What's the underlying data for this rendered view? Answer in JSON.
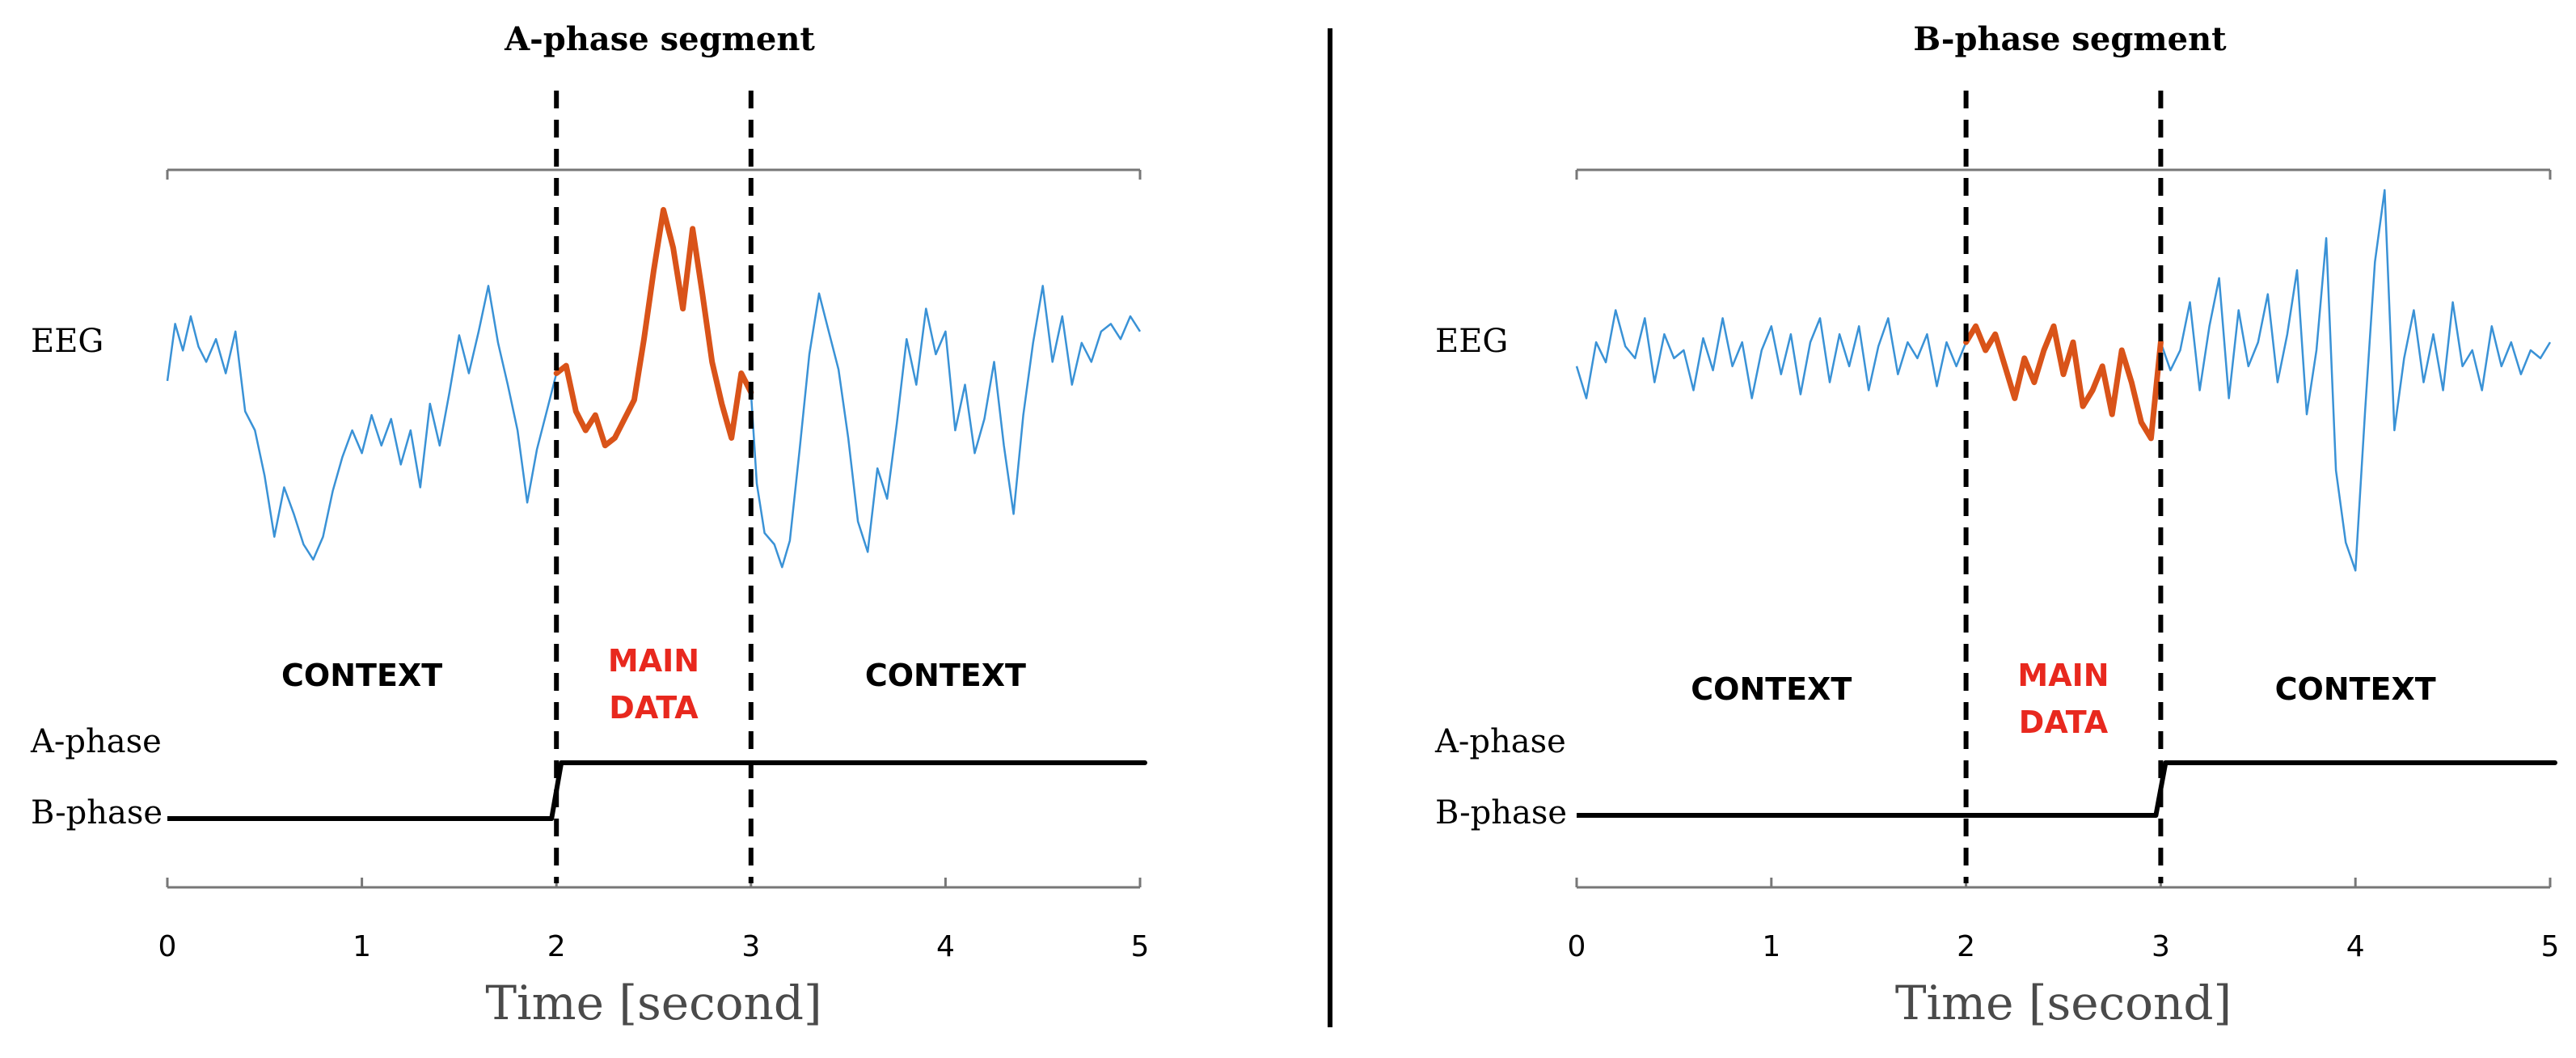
{
  "chart_data": [
    {
      "type": "line",
      "title": "A-phase segment",
      "xlabel": "Time [second]",
      "xlim": [
        0,
        5
      ],
      "x_ticks": [
        "0",
        "1",
        "2",
        "3",
        "4",
        "5"
      ],
      "signal_labels": {
        "eeg": "EEG",
        "a_phase": "A-phase",
        "b_phase": "B-phase"
      },
      "segment": [
        2,
        3
      ],
      "region_labels": {
        "left": "CONTEXT",
        "middle_line1": "MAIN",
        "middle_line2": "DATA",
        "right": "CONTEXT"
      },
      "phase_steps": [
        [
          0,
          "B"
        ],
        [
          2,
          "A"
        ],
        [
          5,
          "A"
        ]
      ],
      "colors": {
        "eeg": "#3a92d6",
        "main": "#d95319",
        "main_label": "#e8281e"
      },
      "eeg": [
        [
          0.0,
          0.53
        ],
        [
          0.04,
          0.68
        ],
        [
          0.08,
          0.61
        ],
        [
          0.12,
          0.7
        ],
        [
          0.16,
          0.62
        ],
        [
          0.2,
          0.58
        ],
        [
          0.25,
          0.64
        ],
        [
          0.3,
          0.55
        ],
        [
          0.35,
          0.66
        ],
        [
          0.4,
          0.45
        ],
        [
          0.45,
          0.4
        ],
        [
          0.5,
          0.28
        ],
        [
          0.55,
          0.12
        ],
        [
          0.6,
          0.25
        ],
        [
          0.65,
          0.18
        ],
        [
          0.7,
          0.1
        ],
        [
          0.75,
          0.06
        ],
        [
          0.8,
          0.12
        ],
        [
          0.85,
          0.24
        ],
        [
          0.9,
          0.33
        ],
        [
          0.95,
          0.4
        ],
        [
          1.0,
          0.34
        ],
        [
          1.05,
          0.44
        ],
        [
          1.1,
          0.36
        ],
        [
          1.15,
          0.43
        ],
        [
          1.2,
          0.31
        ],
        [
          1.25,
          0.4
        ],
        [
          1.3,
          0.25
        ],
        [
          1.35,
          0.47
        ],
        [
          1.4,
          0.36
        ],
        [
          1.45,
          0.5
        ],
        [
          1.5,
          0.65
        ],
        [
          1.55,
          0.55
        ],
        [
          1.6,
          0.66
        ],
        [
          1.65,
          0.78
        ],
        [
          1.7,
          0.63
        ],
        [
          1.75,
          0.52
        ],
        [
          1.8,
          0.4
        ],
        [
          1.85,
          0.21
        ],
        [
          1.9,
          0.35
        ],
        [
          1.95,
          0.45
        ],
        [
          2.0,
          0.55
        ]
      ],
      "eeg_after": [
        [
          3.0,
          0.5
        ],
        [
          3.03,
          0.26
        ],
        [
          3.07,
          0.13
        ],
        [
          3.12,
          0.1
        ],
        [
          3.16,
          0.04
        ],
        [
          3.2,
          0.11
        ],
        [
          3.25,
          0.35
        ],
        [
          3.3,
          0.6
        ],
        [
          3.35,
          0.76
        ],
        [
          3.4,
          0.66
        ],
        [
          3.45,
          0.56
        ],
        [
          3.5,
          0.38
        ],
        [
          3.55,
          0.16
        ],
        [
          3.6,
          0.08
        ],
        [
          3.65,
          0.3
        ],
        [
          3.7,
          0.22
        ],
        [
          3.75,
          0.42
        ],
        [
          3.8,
          0.64
        ],
        [
          3.85,
          0.52
        ],
        [
          3.9,
          0.72
        ],
        [
          3.95,
          0.6
        ],
        [
          4.0,
          0.66
        ],
        [
          4.05,
          0.4
        ],
        [
          4.1,
          0.52
        ],
        [
          4.15,
          0.34
        ],
        [
          4.2,
          0.43
        ],
        [
          4.25,
          0.58
        ],
        [
          4.3,
          0.36
        ],
        [
          4.35,
          0.18
        ],
        [
          4.4,
          0.44
        ],
        [
          4.45,
          0.63
        ],
        [
          4.5,
          0.78
        ],
        [
          4.55,
          0.58
        ],
        [
          4.6,
          0.7
        ],
        [
          4.65,
          0.52
        ],
        [
          4.7,
          0.63
        ],
        [
          4.75,
          0.58
        ],
        [
          4.8,
          0.66
        ],
        [
          4.85,
          0.68
        ],
        [
          4.9,
          0.64
        ],
        [
          4.95,
          0.7
        ],
        [
          5.0,
          0.66
        ]
      ],
      "main": [
        [
          2.0,
          0.55
        ],
        [
          2.05,
          0.57
        ],
        [
          2.1,
          0.45
        ],
        [
          2.15,
          0.4
        ],
        [
          2.2,
          0.44
        ],
        [
          2.25,
          0.36
        ],
        [
          2.3,
          0.38
        ],
        [
          2.35,
          0.43
        ],
        [
          2.4,
          0.48
        ],
        [
          2.45,
          0.64
        ],
        [
          2.5,
          0.82
        ],
        [
          2.55,
          0.98
        ],
        [
          2.6,
          0.88
        ],
        [
          2.65,
          0.72
        ],
        [
          2.7,
          0.93
        ],
        [
          2.75,
          0.76
        ],
        [
          2.8,
          0.58
        ],
        [
          2.85,
          0.47
        ],
        [
          2.9,
          0.38
        ],
        [
          2.95,
          0.55
        ],
        [
          3.0,
          0.5
        ]
      ]
    },
    {
      "type": "line",
      "title": "B-phase segment",
      "xlabel": "Time [second]",
      "xlim": [
        0,
        5
      ],
      "x_ticks": [
        "0",
        "1",
        "2",
        "3",
        "4",
        "5"
      ],
      "signal_labels": {
        "eeg": "EEG",
        "a_phase": "A-phase",
        "b_phase": "B-phase"
      },
      "segment": [
        2,
        3
      ],
      "region_labels": {
        "left": "CONTEXT",
        "middle_line1": "MAIN",
        "middle_line2": "DATA",
        "right": "CONTEXT"
      },
      "phase_steps": [
        [
          0,
          "B"
        ],
        [
          3,
          "A"
        ],
        [
          5,
          "A"
        ]
      ],
      "colors": {
        "eeg": "#3a92d6",
        "main": "#d95319",
        "main_label": "#e8281e"
      },
      "eeg": [
        [
          0.0,
          0.56
        ],
        [
          0.05,
          0.48
        ],
        [
          0.1,
          0.62
        ],
        [
          0.15,
          0.57
        ],
        [
          0.2,
          0.7
        ],
        [
          0.25,
          0.61
        ],
        [
          0.3,
          0.58
        ],
        [
          0.35,
          0.68
        ],
        [
          0.4,
          0.52
        ],
        [
          0.45,
          0.64
        ],
        [
          0.5,
          0.58
        ],
        [
          0.55,
          0.6
        ],
        [
          0.6,
          0.5
        ],
        [
          0.65,
          0.63
        ],
        [
          0.7,
          0.55
        ],
        [
          0.75,
          0.68
        ],
        [
          0.8,
          0.56
        ],
        [
          0.85,
          0.62
        ],
        [
          0.9,
          0.48
        ],
        [
          0.95,
          0.6
        ],
        [
          1.0,
          0.66
        ],
        [
          1.05,
          0.54
        ],
        [
          1.1,
          0.64
        ],
        [
          1.15,
          0.49
        ],
        [
          1.2,
          0.62
        ],
        [
          1.25,
          0.68
        ],
        [
          1.3,
          0.52
        ],
        [
          1.35,
          0.64
        ],
        [
          1.4,
          0.56
        ],
        [
          1.45,
          0.66
        ],
        [
          1.5,
          0.5
        ],
        [
          1.55,
          0.61
        ],
        [
          1.6,
          0.68
        ],
        [
          1.65,
          0.54
        ],
        [
          1.7,
          0.62
        ],
        [
          1.75,
          0.58
        ],
        [
          1.8,
          0.64
        ],
        [
          1.85,
          0.51
        ],
        [
          1.9,
          0.62
        ],
        [
          1.95,
          0.56
        ],
        [
          2.0,
          0.62
        ]
      ],
      "eeg_after": [
        [
          3.0,
          0.62
        ],
        [
          3.05,
          0.55
        ],
        [
          3.1,
          0.6
        ],
        [
          3.15,
          0.72
        ],
        [
          3.2,
          0.5
        ],
        [
          3.25,
          0.66
        ],
        [
          3.3,
          0.78
        ],
        [
          3.35,
          0.48
        ],
        [
          3.4,
          0.7
        ],
        [
          3.45,
          0.56
        ],
        [
          3.5,
          0.62
        ],
        [
          3.55,
          0.74
        ],
        [
          3.6,
          0.52
        ],
        [
          3.65,
          0.64
        ],
        [
          3.7,
          0.8
        ],
        [
          3.75,
          0.44
        ],
        [
          3.8,
          0.6
        ],
        [
          3.85,
          0.88
        ],
        [
          3.9,
          0.3
        ],
        [
          3.95,
          0.12
        ],
        [
          4.0,
          0.05
        ],
        [
          4.05,
          0.45
        ],
        [
          4.1,
          0.82
        ],
        [
          4.15,
          1.0
        ],
        [
          4.2,
          0.4
        ],
        [
          4.25,
          0.58
        ],
        [
          4.3,
          0.7
        ],
        [
          4.35,
          0.52
        ],
        [
          4.4,
          0.64
        ],
        [
          4.45,
          0.5
        ],
        [
          4.5,
          0.72
        ],
        [
          4.55,
          0.56
        ],
        [
          4.6,
          0.6
        ],
        [
          4.65,
          0.5
        ],
        [
          4.7,
          0.66
        ],
        [
          4.75,
          0.56
        ],
        [
          4.8,
          0.62
        ],
        [
          4.85,
          0.54
        ],
        [
          4.9,
          0.6
        ],
        [
          4.95,
          0.58
        ],
        [
          5.0,
          0.62
        ]
      ],
      "main": [
        [
          2.0,
          0.62
        ],
        [
          2.05,
          0.66
        ],
        [
          2.1,
          0.6
        ],
        [
          2.15,
          0.64
        ],
        [
          2.2,
          0.56
        ],
        [
          2.25,
          0.48
        ],
        [
          2.3,
          0.58
        ],
        [
          2.35,
          0.52
        ],
        [
          2.4,
          0.6
        ],
        [
          2.45,
          0.66
        ],
        [
          2.5,
          0.54
        ],
        [
          2.55,
          0.62
        ],
        [
          2.6,
          0.46
        ],
        [
          2.65,
          0.5
        ],
        [
          2.7,
          0.56
        ],
        [
          2.75,
          0.44
        ],
        [
          2.8,
          0.6
        ],
        [
          2.85,
          0.52
        ],
        [
          2.9,
          0.42
        ],
        [
          2.95,
          0.38
        ],
        [
          3.0,
          0.62
        ]
      ]
    }
  ]
}
